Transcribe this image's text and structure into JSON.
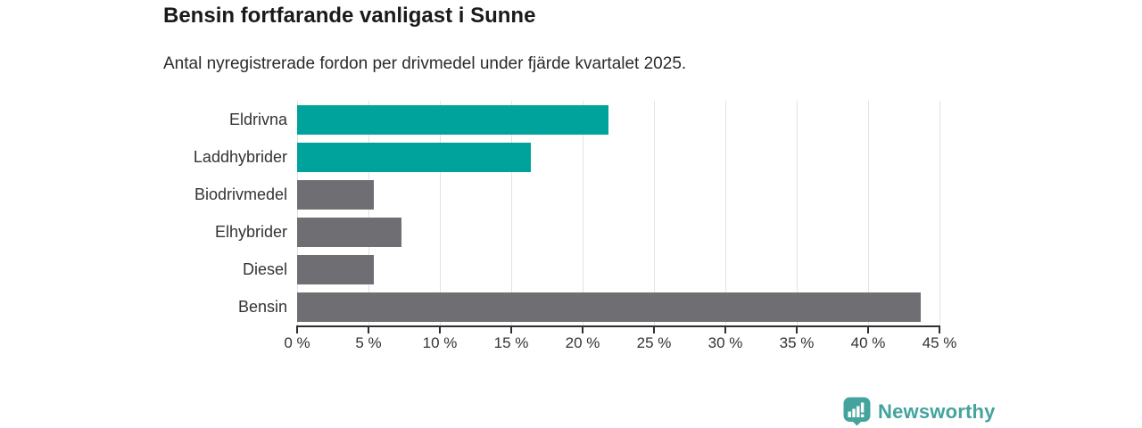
{
  "title": "Bensin fortfarande vanligast i Sunne",
  "subtitle": "Antal nyregistrerade fordon per drivmedel under fjärde kvartalet 2025.",
  "chart_data": {
    "type": "bar",
    "orientation": "horizontal",
    "title": "Bensin fortfarande vanligast i Sunne",
    "subtitle": "Antal nyregistrerade fordon per drivmedel under fjärde kvartalet 2025.",
    "categories": [
      "Eldrivna",
      "Laddhybrider",
      "Biodrivmedel",
      "Elhybrider",
      "Diesel",
      "Bensin"
    ],
    "values": [
      21.8,
      16.4,
      5.4,
      7.3,
      5.4,
      43.7
    ],
    "bar_colors": [
      "#00a39b",
      "#00a39b",
      "#6f6e73",
      "#6f6e73",
      "#6f6e73",
      "#6f6e73"
    ],
    "x_tick_labels": [
      "0 %",
      "5 %",
      "10 %",
      "15 %",
      "20 %",
      "25 %",
      "30 %",
      "35 %",
      "40 %",
      "45 %"
    ],
    "x_tick_values": [
      0,
      5,
      10,
      15,
      20,
      25,
      30,
      35,
      40,
      45
    ],
    "xlim": [
      0,
      45
    ],
    "unit": "%",
    "grid": true,
    "legend": false
  },
  "colors": {
    "highlight": "#00a39b",
    "neutral": "#6f6e73",
    "axis": "#2f2f2f",
    "grid": "#e3e3e3",
    "text": "#333333",
    "title_text": "#1a1a1a",
    "brand": "#44a49d"
  },
  "footer": {
    "brand": "Newsworthy",
    "logo_icon": "bar-chart-badge-icon"
  }
}
